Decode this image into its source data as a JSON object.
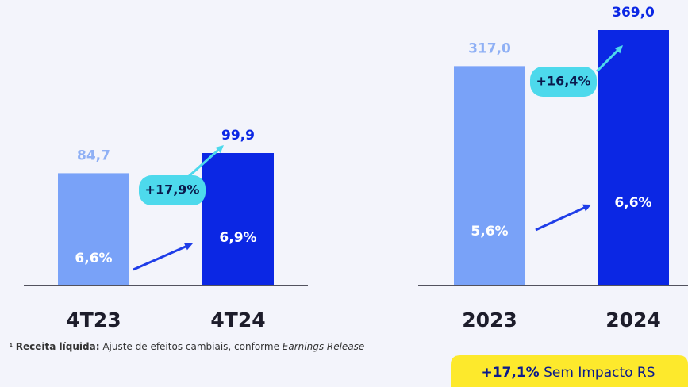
{
  "chart_data": [
    {
      "type": "bar",
      "categories": [
        "4T23",
        "4T24"
      ],
      "values": [
        84.7,
        99.9
      ],
      "value_labels": [
        "84,7",
        "99,9"
      ],
      "colors": [
        "#79a2f8",
        "#0b27e4"
      ],
      "inner_labels": [
        "6,6%",
        "6,9%"
      ],
      "growth_label": "+17,9%"
    },
    {
      "type": "bar",
      "categories": [
        "2023",
        "2024"
      ],
      "values": [
        317.0,
        369.0
      ],
      "value_labels": [
        "317,0",
        "369,0"
      ],
      "colors": [
        "#79a2f8",
        "#0b27e4"
      ],
      "inner_labels": [
        "5,6%",
        "6,6%"
      ],
      "growth_label": "+16,4%"
    }
  ],
  "footnote": {
    "marker": "¹",
    "term": "Receita líquida:",
    "text": "Ajuste de efeitos cambiais, conforme",
    "source": "Earnings Release"
  },
  "highlight": {
    "value": "+17,1%",
    "text": "Sem Impacto RS"
  }
}
